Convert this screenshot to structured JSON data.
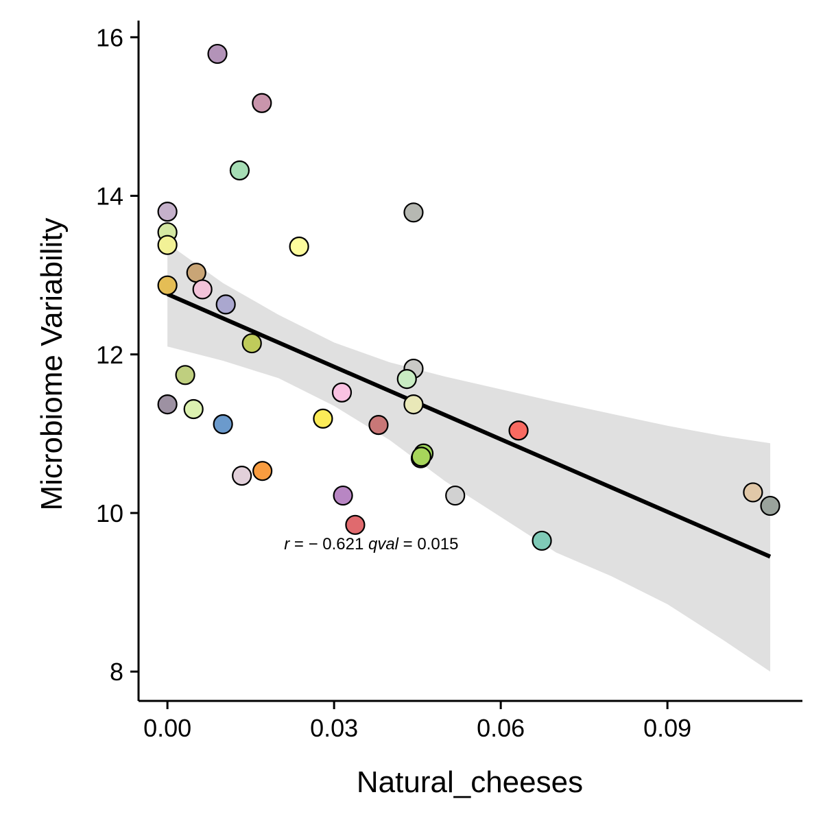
{
  "chart_data": {
    "type": "scatter",
    "title": "",
    "xlabel": "Natural_cheeses",
    "ylabel": "Microbiome Variability",
    "xlim": [
      -0.0052,
      0.1143
    ],
    "ylim": [
      7.63,
      16.21
    ],
    "x_ticks": [
      {
        "value": 0.0,
        "label": "0.00"
      },
      {
        "value": 0.03,
        "label": "0.03"
      },
      {
        "value": 0.06,
        "label": "0.06"
      },
      {
        "value": 0.09,
        "label": "0.09"
      }
    ],
    "y_ticks": [
      {
        "value": 8,
        "label": "8"
      },
      {
        "value": 10,
        "label": "10"
      },
      {
        "value": 12,
        "label": "12"
      },
      {
        "value": 14,
        "label": "14"
      },
      {
        "value": 16,
        "label": "16"
      }
    ],
    "grid": false,
    "legend": "none",
    "annotation": {
      "segments": [
        {
          "text": "r",
          "italic": true
        },
        {
          "text": " = − 0.621 ",
          "italic": false
        },
        {
          "text": "qval",
          "italic": true
        },
        {
          "text": " = 0.015",
          "italic": false
        }
      ],
      "x": 0.021,
      "y": 9.61
    },
    "regression": {
      "x_start": 0.0,
      "y_start": 12.76,
      "x_end": 0.1085,
      "y_end": 9.45,
      "color": "#000000"
    },
    "confidence_band": {
      "color": "#e0e0e0",
      "upper": [
        [
          0.0,
          13.4
        ],
        [
          0.01,
          12.9
        ],
        [
          0.02,
          12.5
        ],
        [
          0.03,
          12.15
        ],
        [
          0.04,
          11.9
        ],
        [
          0.05,
          11.72
        ],
        [
          0.06,
          11.56
        ],
        [
          0.07,
          11.4
        ],
        [
          0.08,
          11.25
        ],
        [
          0.09,
          11.1
        ],
        [
          0.1,
          10.97
        ],
        [
          0.1085,
          10.88
        ]
      ],
      "lower": [
        [
          0.0,
          12.1
        ],
        [
          0.01,
          11.92
        ],
        [
          0.02,
          11.7
        ],
        [
          0.03,
          11.35
        ],
        [
          0.04,
          10.92
        ],
        [
          0.05,
          10.4
        ],
        [
          0.06,
          9.95
        ],
        [
          0.07,
          9.5
        ],
        [
          0.08,
          9.2
        ],
        [
          0.09,
          8.85
        ],
        [
          0.1,
          8.4
        ],
        [
          0.1085,
          8.0
        ]
      ]
    },
    "points": [
      {
        "x": 0.009,
        "y": 15.79,
        "color": "#b393b8"
      },
      {
        "x": 0.017,
        "y": 15.17,
        "color": "#c995ac"
      },
      {
        "x": 0.013,
        "y": 14.32,
        "color": "#a6ddb5"
      },
      {
        "x": 0.0,
        "y": 13.8,
        "color": "#c5b1cb"
      },
      {
        "x": 0.0443,
        "y": 13.79,
        "color": "#b6b8b2"
      },
      {
        "x": 0.0,
        "y": 13.54,
        "color": "#d5e8a3"
      },
      {
        "x": 0.0,
        "y": 13.38,
        "color": "#f2f196"
      },
      {
        "x": 0.0237,
        "y": 13.36,
        "color": "#fdfc9d"
      },
      {
        "x": 0.0052,
        "y": 13.03,
        "color": "#c9a576"
      },
      {
        "x": 0.0,
        "y": 12.87,
        "color": "#e4bd55"
      },
      {
        "x": 0.0063,
        "y": 12.82,
        "color": "#f2c3d9"
      },
      {
        "x": 0.0105,
        "y": 12.63,
        "color": "#aaa7cf"
      },
      {
        "x": 0.0152,
        "y": 12.14,
        "color": "#bfcb5b"
      },
      {
        "x": 0.0443,
        "y": 11.82,
        "color": "#c9c9c6"
      },
      {
        "x": 0.0032,
        "y": 11.74,
        "color": "#bfcf7f"
      },
      {
        "x": 0.0431,
        "y": 11.69,
        "color": "#c8ecc2"
      },
      {
        "x": 0.0314,
        "y": 11.52,
        "color": "#fac2e2"
      },
      {
        "x": 0.0,
        "y": 11.37,
        "color": "#9d91a2"
      },
      {
        "x": 0.0443,
        "y": 11.37,
        "color": "#e9e8b8"
      },
      {
        "x": 0.0047,
        "y": 11.31,
        "color": "#dcf1b0"
      },
      {
        "x": 0.028,
        "y": 11.19,
        "color": "#fbeb58"
      },
      {
        "x": 0.01,
        "y": 11.12,
        "color": "#6b9acc"
      },
      {
        "x": 0.038,
        "y": 11.11,
        "color": "#c97777"
      },
      {
        "x": 0.0632,
        "y": 11.04,
        "color": "#f96a61"
      },
      {
        "x": 0.0461,
        "y": 10.75,
        "color": "#9fd55a"
      },
      {
        "x": 0.0456,
        "y": 10.69,
        "color": "#b874c2"
      },
      {
        "x": 0.0457,
        "y": 10.71,
        "color": "#a7d55b"
      },
      {
        "x": 0.0171,
        "y": 10.53,
        "color": "#f89c40"
      },
      {
        "x": 0.0134,
        "y": 10.47,
        "color": "#e2d0da"
      },
      {
        "x": 0.1054,
        "y": 10.26,
        "color": "#e1c8a8"
      },
      {
        "x": 0.0316,
        "y": 10.22,
        "color": "#b886c3"
      },
      {
        "x": 0.0518,
        "y": 10.22,
        "color": "#d1d1d1"
      },
      {
        "x": 0.1085,
        "y": 10.09,
        "color": "#9aa39c"
      },
      {
        "x": 0.0338,
        "y": 9.85,
        "color": "#e06a6e"
      },
      {
        "x": 0.0674,
        "y": 9.65,
        "color": "#7fcab7"
      }
    ]
  }
}
